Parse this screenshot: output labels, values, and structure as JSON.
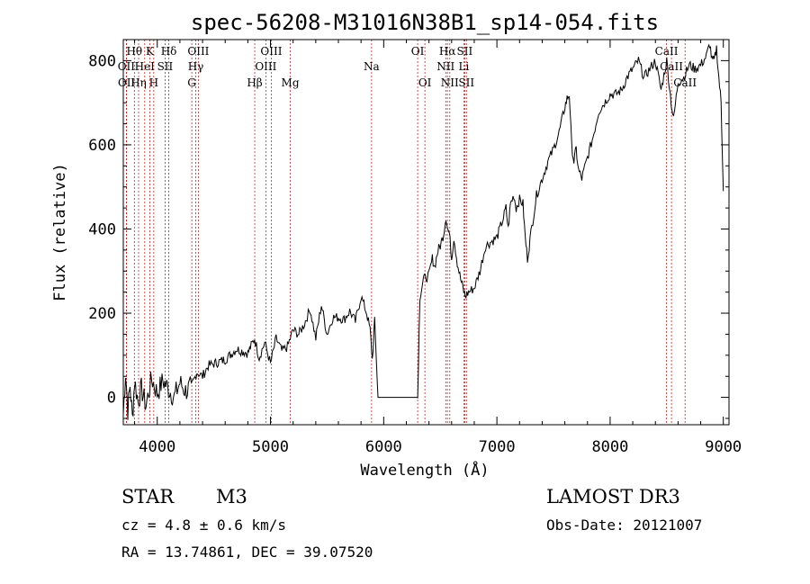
{
  "chart_data": {
    "type": "line",
    "title": "spec-56208-M31016N38B1_sp14-054.fits",
    "xlabel": "Wavelength (Å)",
    "ylabel": "Flux (relative)",
    "xlim": [
      3700,
      9050
    ],
    "ylim": [
      -65,
      850
    ],
    "xticks": [
      4000,
      5000,
      6000,
      7000,
      8000,
      9000
    ],
    "yticks": [
      0,
      200,
      400,
      600,
      800
    ],
    "series": [
      {
        "name": "flux",
        "x": [
          3700,
          3720,
          3740,
          3760,
          3780,
          3800,
          3830,
          3860,
          3900,
          3950,
          4000,
          4050,
          4100,
          4150,
          4200,
          4250,
          4300,
          4350,
          4400,
          4450,
          4500,
          4600,
          4700,
          4800,
          4860,
          4900,
          4950,
          5000,
          5050,
          5100,
          5150,
          5200,
          5250,
          5300,
          5350,
          5400,
          5450,
          5500,
          5550,
          5600,
          5650,
          5700,
          5750,
          5800,
          5850,
          5880,
          5900,
          5920,
          5950,
          5980,
          6000,
          6100,
          6200,
          6300,
          6320,
          6350,
          6400,
          6430,
          6450,
          6480,
          6500,
          6530,
          6550,
          6565,
          6580,
          6600,
          6620,
          6650,
          6680,
          6700,
          6720,
          6750,
          6800,
          6850,
          6900,
          6950,
          7000,
          7050,
          7080,
          7100,
          7120,
          7150,
          7170,
          7200,
          7230,
          7250,
          7270,
          7300,
          7350,
          7400,
          7450,
          7500,
          7550,
          7600,
          7620,
          7640,
          7660,
          7680,
          7700,
          7720,
          7750,
          7800,
          7850,
          7900,
          7950,
          8000,
          8050,
          8100,
          8150,
          8200,
          8250,
          8300,
          8350,
          8400,
          8450,
          8500,
          8540,
          8560,
          8600,
          8650,
          8700,
          8750,
          8800,
          8850,
          8880,
          8900,
          8920,
          8940,
          8960,
          8980,
          9000
        ],
        "y": [
          -40,
          60,
          -30,
          30,
          -50,
          40,
          -10,
          20,
          -20,
          45,
          10,
          40,
          20,
          0,
          35,
          15,
          25,
          60,
          50,
          75,
          80,
          90,
          115,
          105,
          140,
          95,
          130,
          80,
          140,
          110,
          120,
          160,
          150,
          175,
          210,
          140,
          220,
          150,
          190,
          190,
          185,
          205,
          180,
          240,
          200,
          160,
          90,
          180,
          0,
          0,
          0,
          0,
          0,
          0,
          240,
          280,
          290,
          330,
          310,
          350,
          360,
          390,
          430,
          400,
          390,
          330,
          380,
          320,
          280,
          260,
          240,
          250,
          260,
          300,
          360,
          370,
          380,
          420,
          450,
          400,
          460,
          480,
          450,
          470,
          460,
          380,
          330,
          390,
          480,
          520,
          560,
          590,
          630,
          690,
          710,
          720,
          600,
          560,
          590,
          540,
          520,
          570,
          620,
          680,
          700,
          720,
          720,
          730,
          760,
          780,
          800,
          760,
          780,
          800,
          730,
          800,
          700,
          660,
          750,
          760,
          790,
          780,
          790,
          810,
          840,
          800,
          800,
          830,
          760,
          700,
          490
        ]
      }
    ],
    "line_markers": [
      {
        "label": "Hθ",
        "wave": 3798,
        "row": 1
      },
      {
        "label": "OII",
        "wave": 3727,
        "row": 2
      },
      {
        "label": "OII",
        "wave": 3729,
        "row": 3
      },
      {
        "label": "HeI",
        "wave": 3889,
        "row": 2
      },
      {
        "label": "Hη",
        "wave": 3835,
        "row": 3
      },
      {
        "label": "K",
        "wave": 3934,
        "row": 1
      },
      {
        "label": "SII",
        "wave": 4069,
        "row": 2
      },
      {
        "label": "H",
        "wave": 3969,
        "row": 3
      },
      {
        "label": "Hδ",
        "wave": 4102,
        "row": 1
      },
      {
        "label": "OIII",
        "wave": 4363,
        "row": 1
      },
      {
        "label": "Hγ",
        "wave": 4340,
        "row": 2
      },
      {
        "label": "G",
        "wave": 4305,
        "row": 3
      },
      {
        "label": "OIII",
        "wave": 5007,
        "row": 1
      },
      {
        "label": "OIII",
        "wave": 4959,
        "row": 2
      },
      {
        "label": "Hβ",
        "wave": 4861,
        "row": 3
      },
      {
        "label": "Mg",
        "wave": 5175,
        "row": 3
      },
      {
        "label": "Na",
        "wave": 5893,
        "row": 2
      },
      {
        "label": "OI",
        "wave": 6300,
        "row": 1
      },
      {
        "label": "OI",
        "wave": 6364,
        "row": 3
      },
      {
        "label": "Hα",
        "wave": 6563,
        "row": 1
      },
      {
        "label": "SII",
        "wave": 6716,
        "row": 1
      },
      {
        "label": "NII",
        "wave": 6548,
        "row": 2
      },
      {
        "label": "Li",
        "wave": 6708,
        "row": 2
      },
      {
        "label": "NII",
        "wave": 6584,
        "row": 3
      },
      {
        "label": "SII",
        "wave": 6731,
        "row": 3
      },
      {
        "label": "CaII",
        "wave": 8498,
        "row": 1
      },
      {
        "label": "CaII",
        "wave": 8542,
        "row": 2
      },
      {
        "label": "CaII",
        "wave": 8662,
        "row": 3
      }
    ]
  },
  "info": {
    "class_label": "STAR",
    "subclass": "M3",
    "survey": "LAMOST DR3",
    "cz": "cz = 4.8 ± 0.6 km/s",
    "obs_date": "Obs-Date: 20121007",
    "coords": "RA =  13.74861, DEC =  39.07520"
  },
  "colors": {
    "marker_line": "#cc2222",
    "spectrum": "#000000"
  }
}
